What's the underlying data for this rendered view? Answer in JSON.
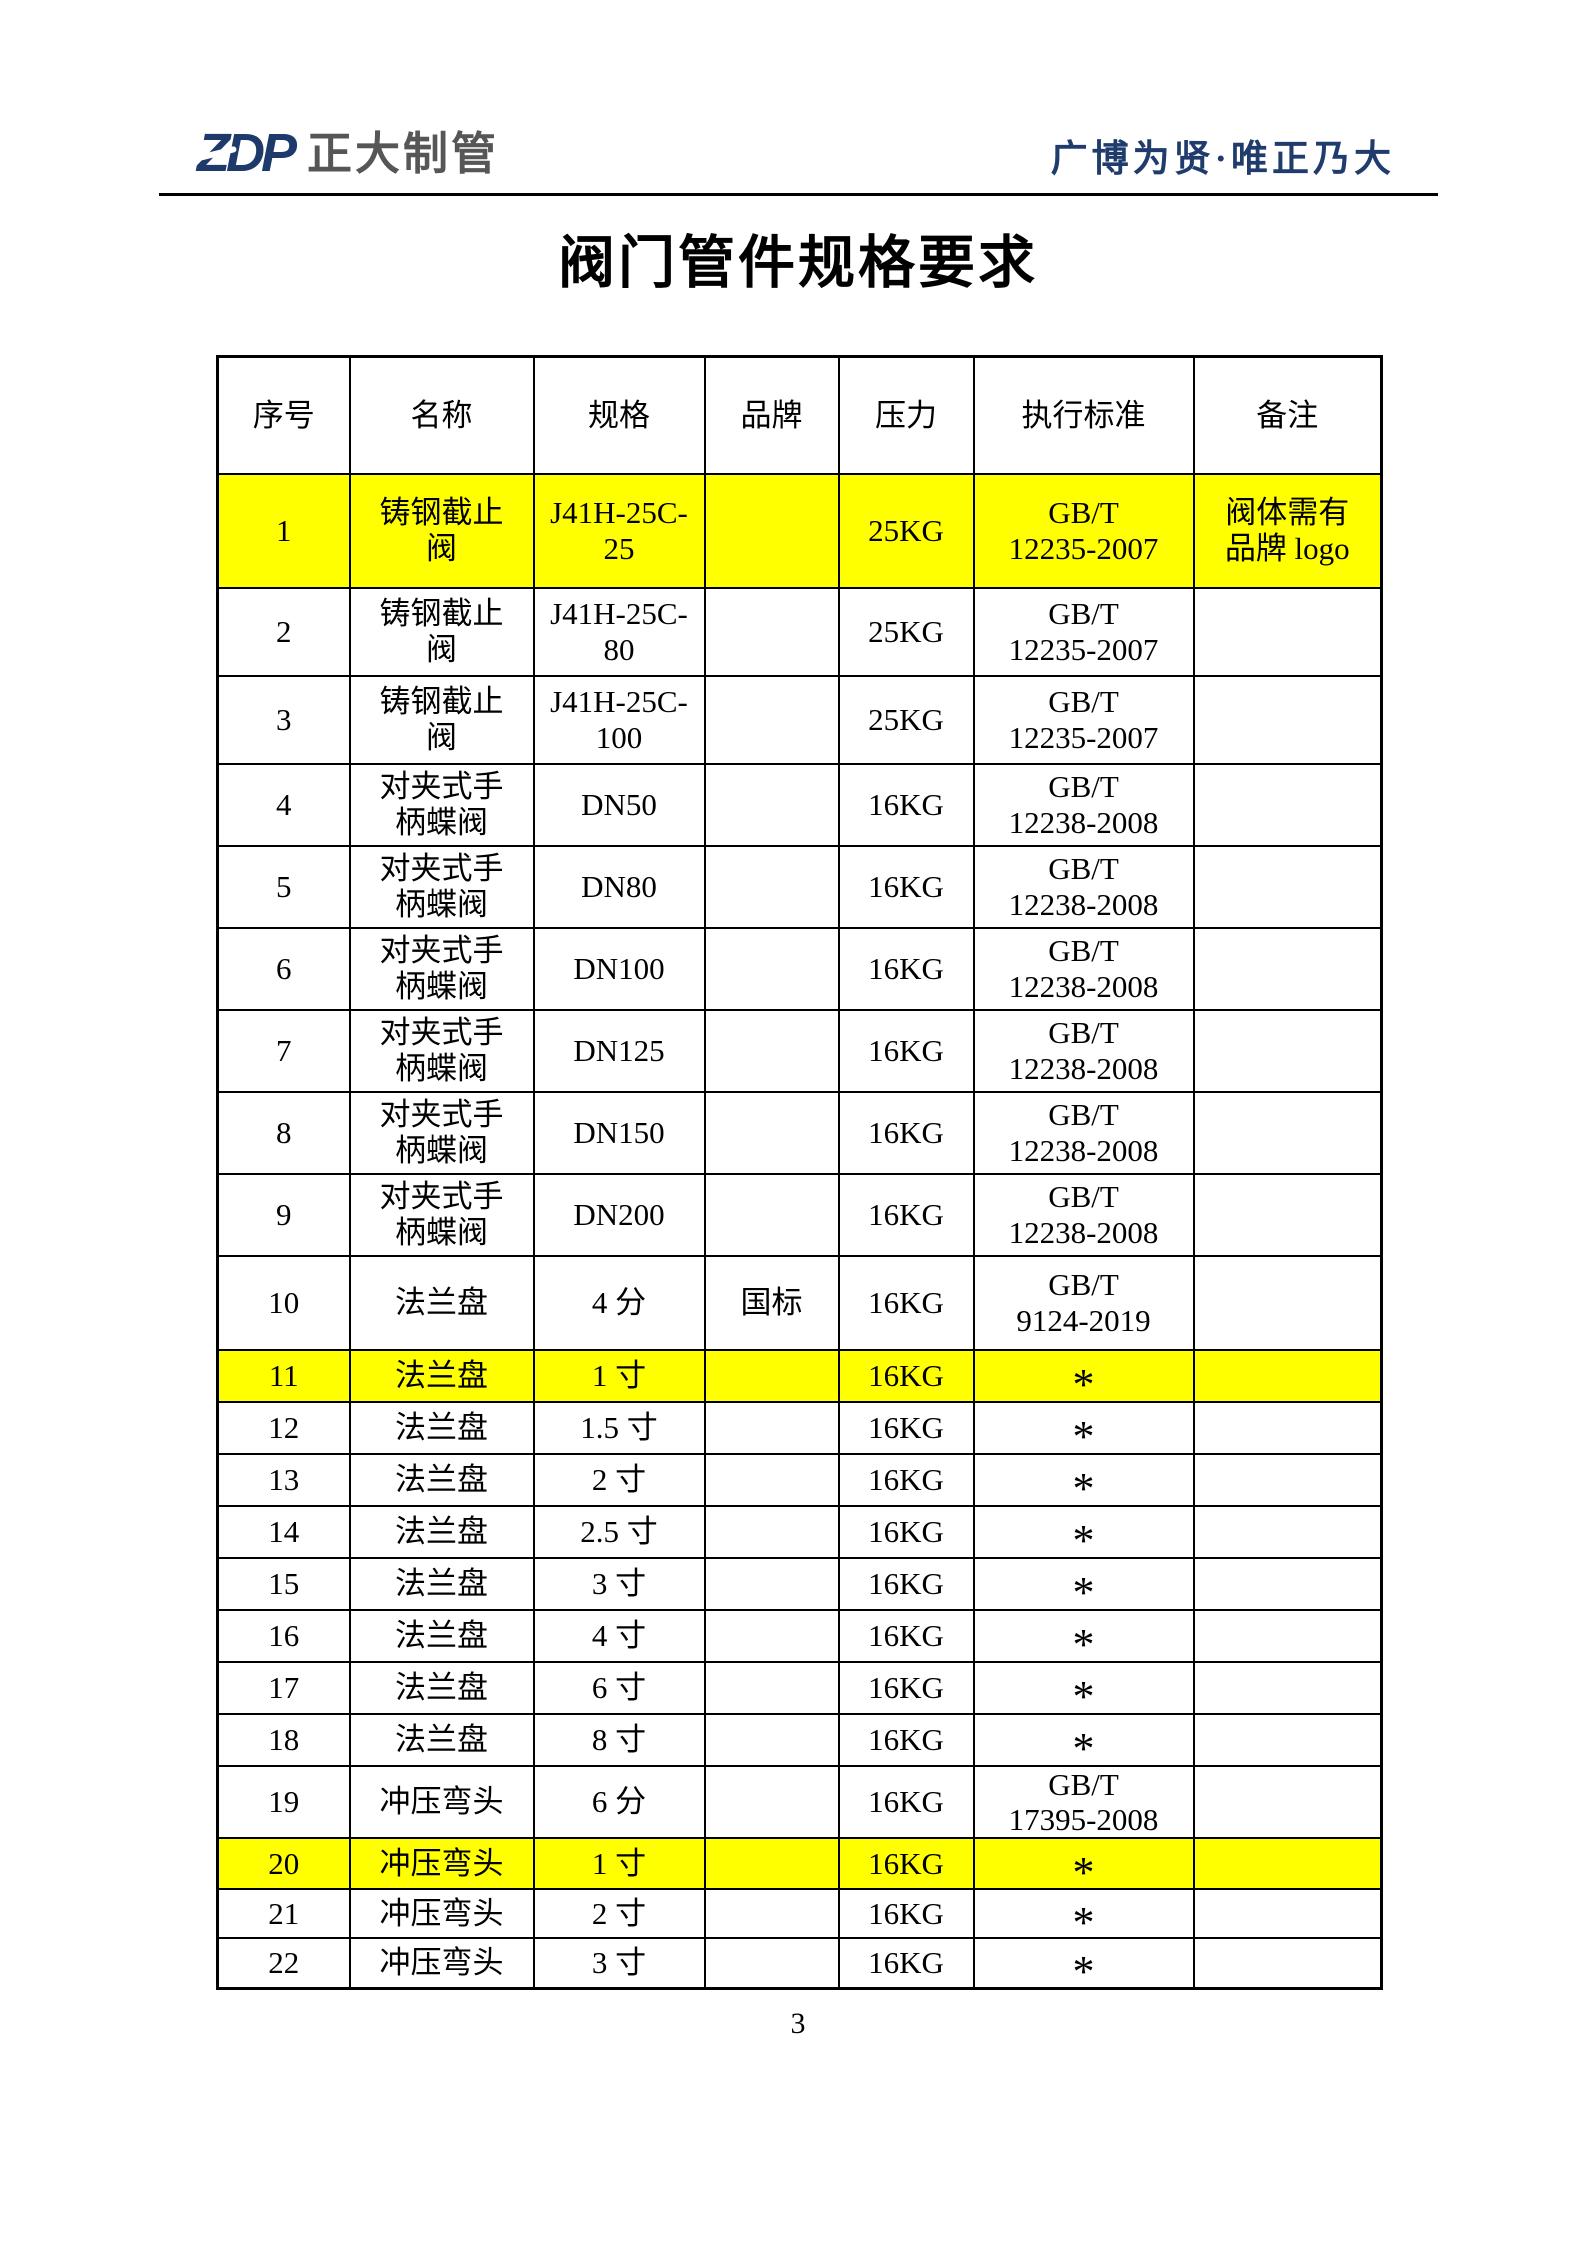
{
  "header": {
    "logo_text": "ZDP",
    "company_name": "正大制管",
    "slogan": "广博为贤·唯正乃大"
  },
  "title": "阀门管件规格要求",
  "table": {
    "columns": [
      "序号",
      "名称",
      "规格",
      "品牌",
      "压力",
      "执行标准",
      "备注"
    ],
    "rows": [
      {
        "no": "1",
        "name": "铸钢截止\n阀",
        "spec": "J41H-25C-\n25",
        "brand": "",
        "pressure": "25KG",
        "standard": "GB/T\n12235-2007",
        "remark": "阀体需有\n品牌 logo",
        "highlight": true
      },
      {
        "no": "2",
        "name": "铸钢截止\n阀",
        "spec": "J41H-25C-\n80",
        "brand": "",
        "pressure": "25KG",
        "standard": "GB/T\n12235-2007",
        "remark": "",
        "highlight": false
      },
      {
        "no": "3",
        "name": "铸钢截止\n阀",
        "spec": "J41H-25C-\n100",
        "brand": "",
        "pressure": "25KG",
        "standard": "GB/T\n12235-2007",
        "remark": "",
        "highlight": false
      },
      {
        "no": "4",
        "name": "对夹式手\n柄蝶阀",
        "spec": "DN50",
        "brand": "",
        "pressure": "16KG",
        "standard": "GB/T\n12238-2008",
        "remark": "",
        "highlight": false
      },
      {
        "no": "5",
        "name": "对夹式手\n柄蝶阀",
        "spec": "DN80",
        "brand": "",
        "pressure": "16KG",
        "standard": "GB/T\n12238-2008",
        "remark": "",
        "highlight": false
      },
      {
        "no": "6",
        "name": "对夹式手\n柄蝶阀",
        "spec": "DN100",
        "brand": "",
        "pressure": "16KG",
        "standard": "GB/T\n12238-2008",
        "remark": "",
        "highlight": false
      },
      {
        "no": "7",
        "name": "对夹式手\n柄蝶阀",
        "spec": "DN125",
        "brand": "",
        "pressure": "16KG",
        "standard": "GB/T\n12238-2008",
        "remark": "",
        "highlight": false
      },
      {
        "no": "8",
        "name": "对夹式手\n柄蝶阀",
        "spec": "DN150",
        "brand": "",
        "pressure": "16KG",
        "standard": "GB/T\n12238-2008",
        "remark": "",
        "highlight": false
      },
      {
        "no": "9",
        "name": "对夹式手\n柄蝶阀",
        "spec": "DN200",
        "brand": "",
        "pressure": "16KG",
        "standard": "GB/T\n12238-2008",
        "remark": "",
        "highlight": false
      },
      {
        "no": "10",
        "name": "法兰盘",
        "spec": "4 分",
        "brand": "国标",
        "pressure": "16KG",
        "standard": "GB/T\n9124-2019",
        "remark": "",
        "highlight": false
      },
      {
        "no": "11",
        "name": "法兰盘",
        "spec": "1 寸",
        "brand": "",
        "pressure": "16KG",
        "standard": "*",
        "remark": "",
        "highlight": true
      },
      {
        "no": "12",
        "name": "法兰盘",
        "spec": "1.5 寸",
        "brand": "",
        "pressure": "16KG",
        "standard": "*",
        "remark": "",
        "highlight": false
      },
      {
        "no": "13",
        "name": "法兰盘",
        "spec": "2 寸",
        "brand": "",
        "pressure": "16KG",
        "standard": "*",
        "remark": "",
        "highlight": false
      },
      {
        "no": "14",
        "name": "法兰盘",
        "spec": "2.5 寸",
        "brand": "",
        "pressure": "16KG",
        "standard": "*",
        "remark": "",
        "highlight": false
      },
      {
        "no": "15",
        "name": "法兰盘",
        "spec": "3 寸",
        "brand": "",
        "pressure": "16KG",
        "standard": "*",
        "remark": "",
        "highlight": false
      },
      {
        "no": "16",
        "name": "法兰盘",
        "spec": "4 寸",
        "brand": "",
        "pressure": "16KG",
        "standard": "*",
        "remark": "",
        "highlight": false
      },
      {
        "no": "17",
        "name": "法兰盘",
        "spec": "6 寸",
        "brand": "",
        "pressure": "16KG",
        "standard": "*",
        "remark": "",
        "highlight": false
      },
      {
        "no": "18",
        "name": "法兰盘",
        "spec": "8 寸",
        "brand": "",
        "pressure": "16KG",
        "standard": "*",
        "remark": "",
        "highlight": false
      },
      {
        "no": "19",
        "name": "冲压弯头",
        "spec": "6 分",
        "brand": "",
        "pressure": "16KG",
        "standard": "GB/T\n17395-2008",
        "remark": "",
        "highlight": false
      },
      {
        "no": "20",
        "name": "冲压弯头",
        "spec": "1 寸",
        "brand": "",
        "pressure": "16KG",
        "standard": "*",
        "remark": "",
        "highlight": true
      },
      {
        "no": "21",
        "name": "冲压弯头",
        "spec": "2 寸",
        "brand": "",
        "pressure": "16KG",
        "standard": "*",
        "remark": "",
        "highlight": false
      },
      {
        "no": "22",
        "name": "冲压弯头",
        "spec": "3 寸",
        "brand": "",
        "pressure": "16KG",
        "standard": "*",
        "remark": "",
        "highlight": false
      }
    ]
  },
  "page_number": "3",
  "colors": {
    "highlight": "#FFFF00",
    "logo_navy": "#1D3A6A",
    "logo_gray": "#565656",
    "slogan_navy": "#1F3C6D"
  }
}
